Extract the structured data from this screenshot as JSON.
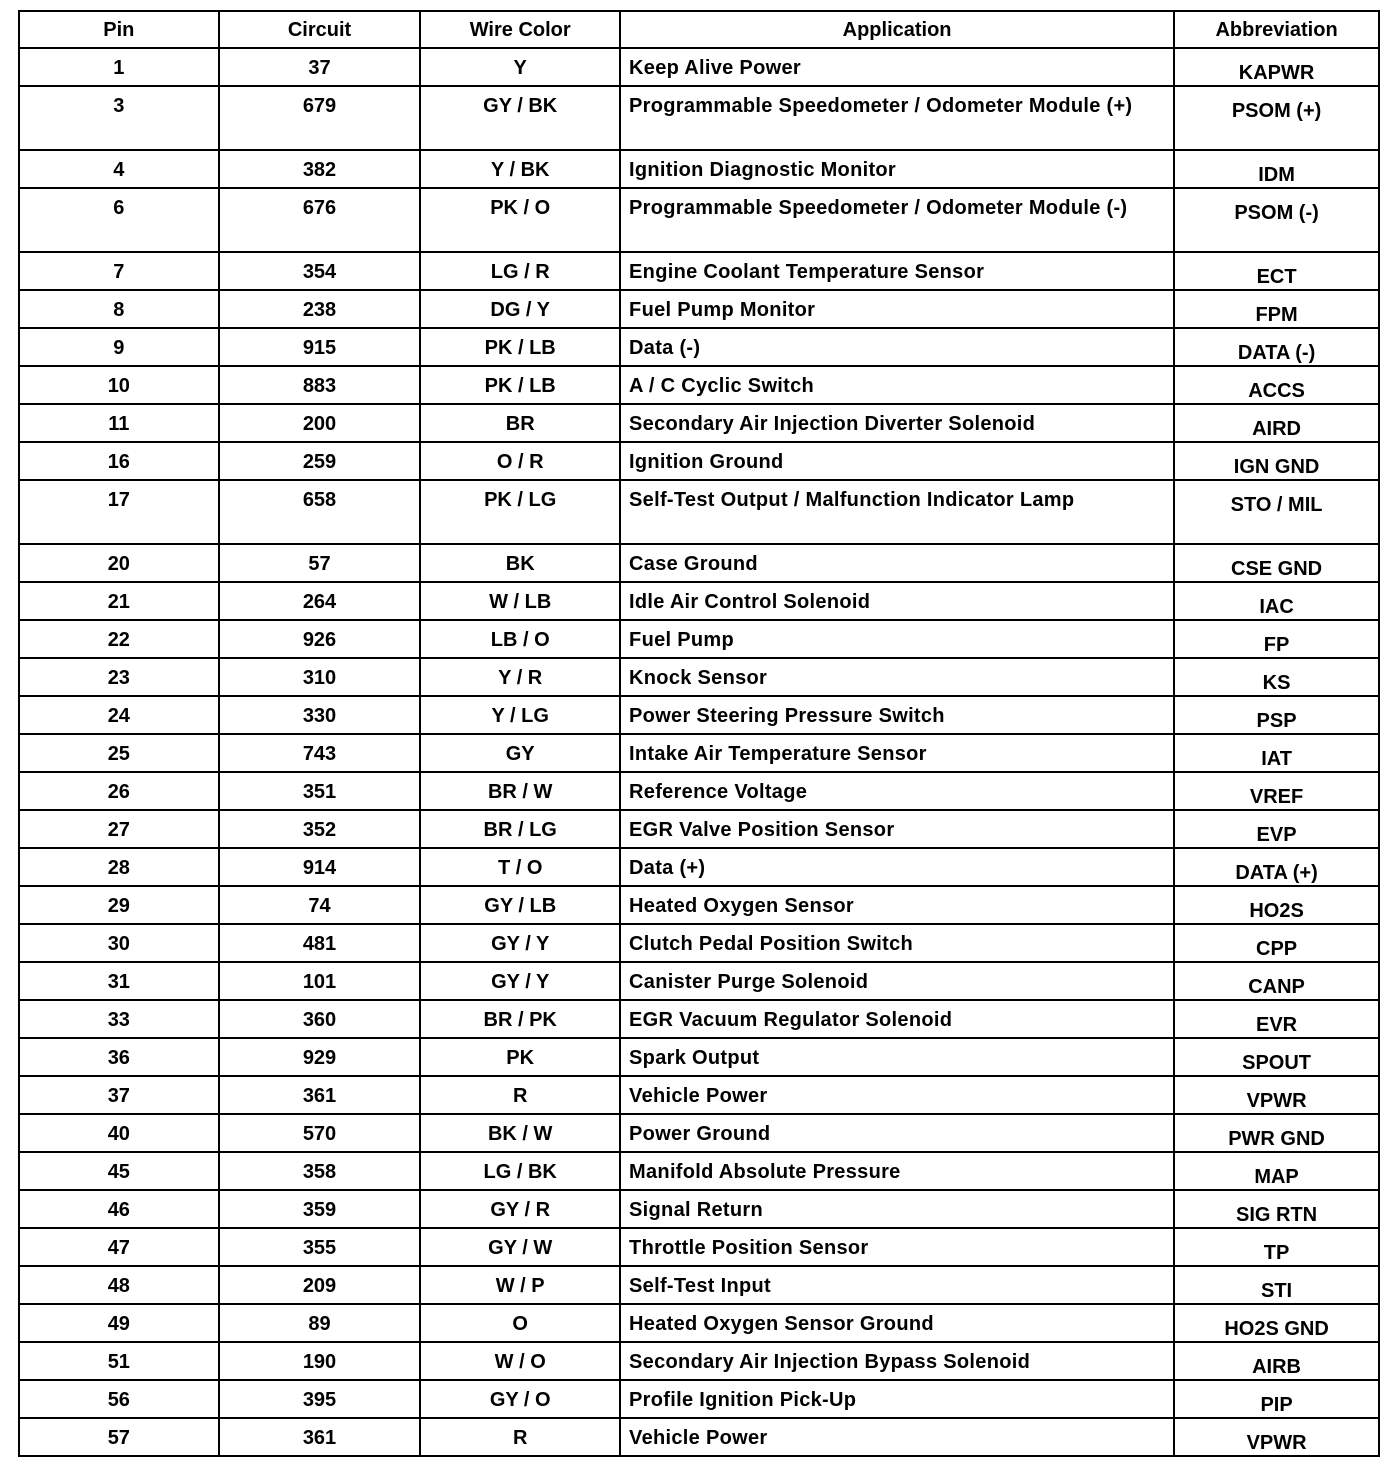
{
  "headers": [
    "Pin",
    "Circuit",
    "Wire Color",
    "Application",
    "Abbreviation"
  ],
  "rows": [
    [
      "1",
      "37",
      "Y",
      "Keep Alive Power",
      "KAPWR"
    ],
    [
      "3",
      "679",
      "GY / BK",
      "Programmable Speedometer / Odometer Module (+)",
      "PSOM (+)"
    ],
    [
      "4",
      "382",
      "Y / BK",
      "Ignition Diagnostic Monitor",
      "IDM"
    ],
    [
      "6",
      "676",
      "PK / O",
      "Programmable Speedometer / Odometer Module (-)",
      "PSOM (-)"
    ],
    [
      "7",
      "354",
      "LG / R",
      "Engine Coolant Temperature Sensor",
      "ECT"
    ],
    [
      "8",
      "238",
      "DG / Y",
      "Fuel Pump Monitor",
      "FPM"
    ],
    [
      "9",
      "915",
      "PK / LB",
      "Data (-)",
      "DATA (-)"
    ],
    [
      "10",
      "883",
      "PK / LB",
      "A / C Cyclic Switch",
      "ACCS"
    ],
    [
      "11",
      "200",
      "BR",
      "Secondary Air Injection Diverter Solenoid",
      "AIRD"
    ],
    [
      "16",
      "259",
      "O / R",
      "Ignition Ground",
      "IGN GND"
    ],
    [
      "17",
      "658",
      "PK / LG",
      "Self-Test Output / Malfunction Indicator Lamp",
      "STO / MIL"
    ],
    [
      "20",
      "57",
      "BK",
      "Case Ground",
      "CSE GND"
    ],
    [
      "21",
      "264",
      "W / LB",
      "Idle Air Control Solenoid",
      "IAC"
    ],
    [
      "22",
      "926",
      "LB / O",
      "Fuel Pump",
      "FP"
    ],
    [
      "23",
      "310",
      "Y / R",
      "Knock Sensor",
      "KS"
    ],
    [
      "24",
      "330",
      "Y / LG",
      "Power Steering Pressure Switch",
      "PSP"
    ],
    [
      "25",
      "743",
      "GY",
      "Intake Air Temperature Sensor",
      "IAT"
    ],
    [
      "26",
      "351",
      "BR / W",
      "Reference Voltage",
      "VREF"
    ],
    [
      "27",
      "352",
      "BR / LG",
      "EGR Valve Position Sensor",
      "EVP"
    ],
    [
      "28",
      "914",
      "T / O",
      "Data (+)",
      "DATA (+)"
    ],
    [
      "29",
      "74",
      "GY / LB",
      "Heated Oxygen Sensor",
      "HO2S"
    ],
    [
      "30",
      "481",
      "GY / Y",
      "Clutch Pedal Position Switch",
      "CPP"
    ],
    [
      "31",
      "101",
      "GY / Y",
      "Canister Purge Solenoid",
      "CANP"
    ],
    [
      "33",
      "360",
      "BR / PK",
      "EGR Vacuum Regulator Solenoid",
      "EVR"
    ],
    [
      "36",
      "929",
      "PK",
      "Spark Output",
      "SPOUT"
    ],
    [
      "37",
      "361",
      "R",
      "Vehicle Power",
      "VPWR"
    ],
    [
      "40",
      "570",
      "BK / W",
      "Power Ground",
      "PWR GND"
    ],
    [
      "45",
      "358",
      "LG / BK",
      "Manifold Absolute Pressure",
      "MAP"
    ],
    [
      "46",
      "359",
      "GY / R",
      "Signal Return",
      "SIG RTN"
    ],
    [
      "47",
      "355",
      "GY / W",
      "Throttle Position Sensor",
      "TP"
    ],
    [
      "48",
      "209",
      "W / P",
      "Self-Test Input",
      "STI"
    ],
    [
      "49",
      "89",
      "O",
      "Heated Oxygen Sensor Ground",
      "HO2S GND"
    ],
    [
      "51",
      "190",
      "W / O",
      "Secondary Air Injection Bypass Solenoid",
      "AIRB"
    ],
    [
      "56",
      "395",
      "GY / O",
      "Profile Ignition Pick-Up",
      "PIP"
    ],
    [
      "57",
      "361",
      "R",
      "Vehicle Power",
      "VPWR"
    ]
  ]
}
